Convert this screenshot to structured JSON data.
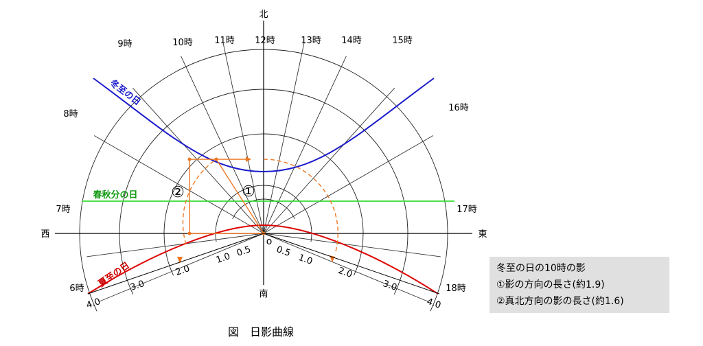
{
  "directions": {
    "north": "北",
    "south": "南",
    "east": "東",
    "west": "西"
  },
  "hours": [
    {
      "label": "6時",
      "angle": -112.5
    },
    {
      "label": "7時",
      "angle": -97.5
    },
    {
      "label": "8時",
      "angle": -60
    },
    {
      "label": "9時",
      "angle": -42
    },
    {
      "label": "10時",
      "angle": -25
    },
    {
      "label": "11時",
      "angle": -12
    },
    {
      "label": "12時",
      "angle": 0
    },
    {
      "label": "13時",
      "angle": 12
    },
    {
      "label": "14時",
      "angle": 25
    },
    {
      "label": "15時",
      "angle": 42
    },
    {
      "label": "16時",
      "angle": 60
    },
    {
      "label": "17時",
      "angle": 97.5
    },
    {
      "label": "18時",
      "angle": 112.5
    }
  ],
  "scale_labels": [
    "0.5",
    "1.0",
    "2.0",
    "3.0",
    "4.0"
  ],
  "origin_label": "o",
  "curves": {
    "winter": "冬至の日",
    "equinox": "春秋分の日",
    "summer": "夏至の日"
  },
  "markers": {
    "one": "①",
    "two": "②"
  },
  "legend": {
    "title": "冬至の日の10時の影",
    "line1": "①影の方向の長さ(約1.9)",
    "line2": "②真北方向の影の長さ(約1.6)"
  },
  "caption": "図　日影曲線",
  "colors": {
    "winter": "#1a1acc",
    "equinox": "#33dd33",
    "summer": "#dd0000",
    "construction": "#ee7722"
  }
}
